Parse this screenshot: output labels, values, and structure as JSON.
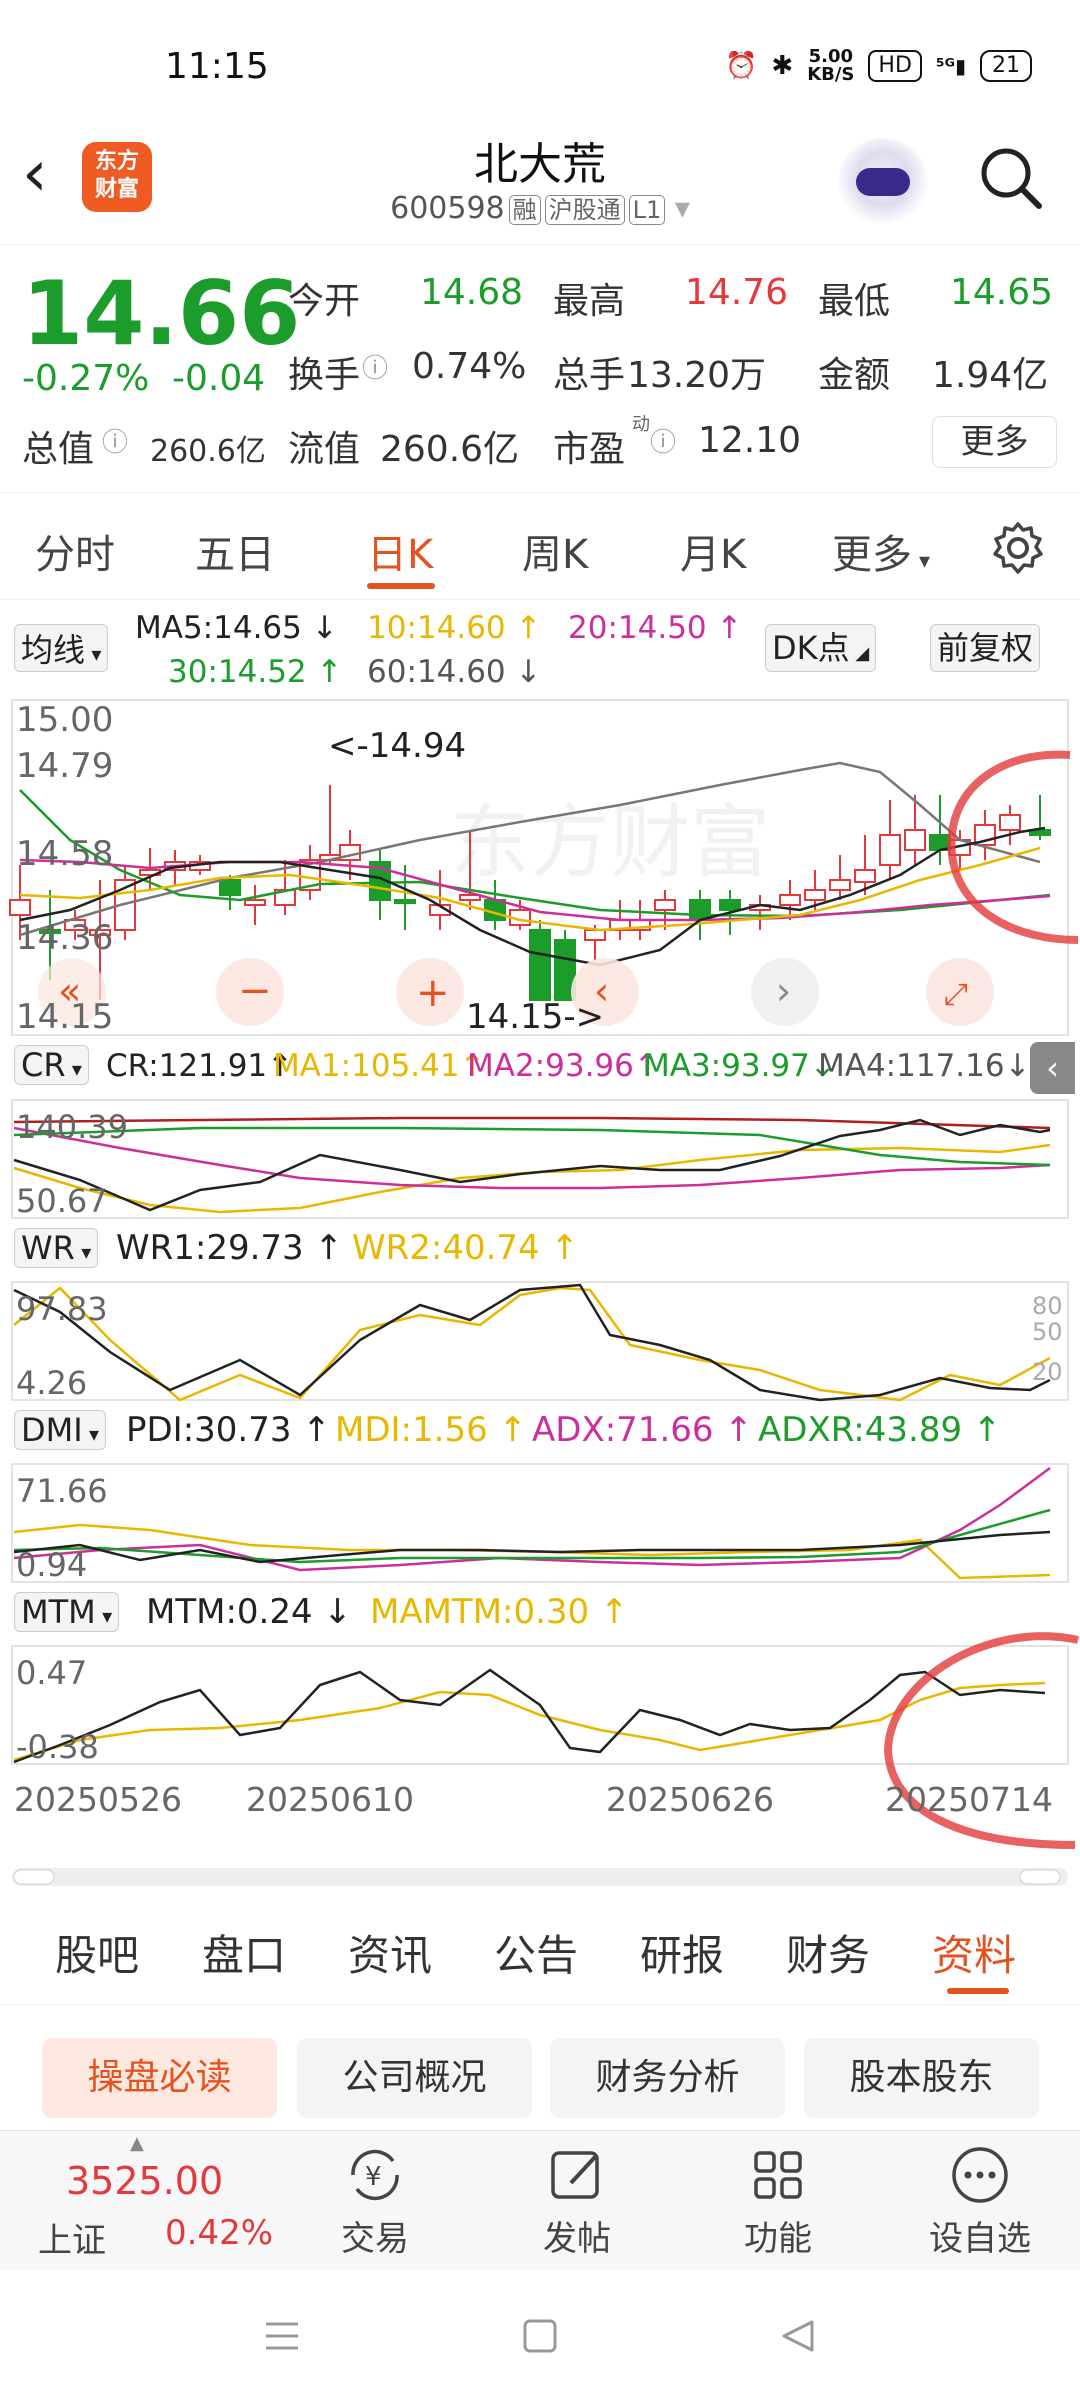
{
  "status": {
    "time": "11:15",
    "speed": "5.00\nKB/S",
    "hd": "HD",
    "signal": "5G",
    "battery": "21"
  },
  "header": {
    "stock_name": "北大荒",
    "stock_code": "600598",
    "tags": [
      "融",
      "沪股通",
      "L1"
    ],
    "logo_text": "东方\n财富"
  },
  "quote": {
    "price": "14.66",
    "change_pct": "-0.27%",
    "change": "-0.04",
    "open_label": "今开",
    "open": "14.68",
    "high_label": "最高",
    "high": "14.76",
    "low_label": "最低",
    "low": "14.65",
    "turnover_label": "换手",
    "turnover": "0.74%",
    "volume_label": "总手",
    "volume": "13.20万",
    "amount_label": "金额",
    "amount": "1.94亿",
    "mcap_label": "总值",
    "mcap": "260.6亿",
    "float_label": "流值",
    "float_val": "260.6亿",
    "pe_label": "市盈",
    "pe_sup": "动",
    "pe": "12.10",
    "more": "更多"
  },
  "ktabs": [
    "分时",
    "五日",
    "日K",
    "周K",
    "月K",
    "更多"
  ],
  "ma": {
    "select": "均线",
    "ma5": "MA5:14.65",
    "ma10": "10:14.60",
    "ma20": "20:14.50",
    "ma30": "30:14.52",
    "ma60": "60:14.60",
    "dk": "DK点",
    "fq": "前复权"
  },
  "kline_axis": {
    "y_top": "15.00",
    "y2": "14.79",
    "y3": "14.58",
    "y4": "14.36",
    "y_bottom": "14.15",
    "max_label": "<-14.94",
    "min_label": "14.15->"
  },
  "cr": {
    "select": "CR",
    "cr": "CR:121.91",
    "ma1": "MA1:105.41",
    "ma2": "MA2:93.96",
    "ma3": "MA3:93.97",
    "ma4": "MA4:117.16",
    "y_top": "140.39",
    "y_bottom": "50.67"
  },
  "wr": {
    "select": "WR",
    "wr1": "WR1:29.73",
    "wr2": "WR2:40.74",
    "y_top": "97.83",
    "y_bottom": "4.26",
    "r80": "80",
    "r50": "50",
    "r20": "20"
  },
  "dmi": {
    "select": "DMI",
    "pdi": "PDI:30.73",
    "mdi": "MDI:1.56",
    "adx": "ADX:71.66",
    "adxr": "ADXR:43.89",
    "y_top": "71.66",
    "y_bottom": "0.94"
  },
  "mtm": {
    "select": "MTM",
    "mtm": "MTM:0.24",
    "mamtm": "MAMTM:0.30",
    "y_top": "0.47",
    "y_bottom": "-0.38"
  },
  "dates": [
    "20250526",
    "20250610",
    "20250626",
    "20250714"
  ],
  "bottom_tabs": [
    "股吧",
    "盘口",
    "资讯",
    "公告",
    "研报",
    "财务",
    "资料"
  ],
  "sub_tabs": [
    "操盘必读",
    "公司概况",
    "财务分析",
    "股本股东"
  ],
  "toolbar": {
    "index_value": "3525.00",
    "index_name": "上证",
    "index_pct": "0.42%",
    "trade": "交易",
    "post": "发帖",
    "func": "功能",
    "watch": "设自选"
  },
  "colors": {
    "up": "#e4393c",
    "down": "#1b9c2b",
    "accent": "#e4531f",
    "ma5": "#222222",
    "ma10": "#e8b700",
    "ma20": "#cc2f9c",
    "ma30": "#1b9c2b",
    "ma60": "#777777"
  }
}
